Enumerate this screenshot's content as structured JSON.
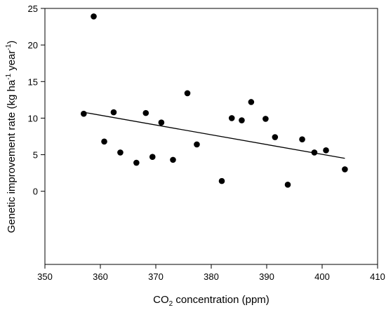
{
  "chart_data": {
    "type": "scatter",
    "title": "",
    "xlabel": {
      "main": "CO",
      "sub": "2",
      "rest": " concentration (ppm)"
    },
    "ylabel": {
      "main": "Genetic improvement rate (kg ha",
      "sup1": "-1",
      "mid": " year",
      "sup2": "-1",
      "end": ")"
    },
    "xlim": [
      350,
      410
    ],
    "ylim": [
      -10,
      25
    ],
    "x_ticks": [
      "350",
      "360",
      "370",
      "380",
      "390",
      "400",
      "410"
    ],
    "y_ticks": [
      "0",
      "5",
      "10",
      "15",
      "20",
      "25"
    ],
    "grid": false,
    "legend": "none",
    "series": [
      {
        "points": [
          [
            357.0,
            10.6
          ],
          [
            358.8,
            23.9
          ],
          [
            360.7,
            6.8
          ],
          [
            362.4,
            10.8
          ],
          [
            363.6,
            5.3
          ],
          [
            366.5,
            3.9
          ],
          [
            368.2,
            10.7
          ],
          [
            369.4,
            4.7
          ],
          [
            371.0,
            9.4
          ],
          [
            373.1,
            4.3
          ],
          [
            375.7,
            13.4
          ],
          [
            377.4,
            6.4
          ],
          [
            381.9,
            1.4
          ],
          [
            383.7,
            10.0
          ],
          [
            385.5,
            9.7
          ],
          [
            387.2,
            12.2
          ],
          [
            389.8,
            9.9
          ],
          [
            391.5,
            7.4
          ],
          [
            393.8,
            0.9
          ],
          [
            396.4,
            7.1
          ],
          [
            398.6,
            5.3
          ],
          [
            400.7,
            5.6
          ],
          [
            404.1,
            3.0
          ]
        ]
      }
    ],
    "trendline": {
      "x": [
        357.0,
        404.1
      ],
      "y": [
        10.8,
        4.5
      ]
    },
    "colors": {
      "points": "#000000",
      "line": "#000000",
      "axes": "#000000"
    }
  }
}
